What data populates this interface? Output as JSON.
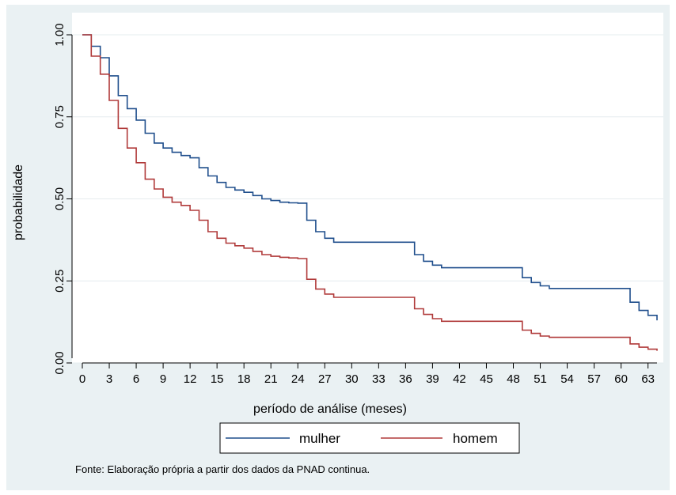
{
  "chart_data": {
    "type": "line",
    "step": true,
    "title": "",
    "xlabel": "período de análise (meses)",
    "ylabel": "probabilidade",
    "xlim": [
      0,
      64
    ],
    "ylim": [
      0,
      1
    ],
    "x_ticks": [
      "0",
      "3",
      "6",
      "9",
      "12",
      "15",
      "18",
      "21",
      "24",
      "27",
      "30",
      "33",
      "36",
      "39",
      "42",
      "45",
      "48",
      "51",
      "54",
      "57",
      "60",
      "63"
    ],
    "y_ticks": [
      "0.00",
      "0.25",
      "0.50",
      "0.75",
      "1.00"
    ],
    "grid": true,
    "legend_position": "bottom",
    "series": [
      {
        "name": "mulher",
        "color": "#1f4e8c",
        "points": [
          [
            0,
            1.0
          ],
          [
            1,
            0.965
          ],
          [
            2,
            0.93
          ],
          [
            3,
            0.875
          ],
          [
            4,
            0.815
          ],
          [
            5,
            0.775
          ],
          [
            6,
            0.74
          ],
          [
            7,
            0.7
          ],
          [
            8,
            0.67
          ],
          [
            9,
            0.655
          ],
          [
            10,
            0.642
          ],
          [
            11,
            0.632
          ],
          [
            12,
            0.625
          ],
          [
            13,
            0.595
          ],
          [
            14,
            0.57
          ],
          [
            15,
            0.55
          ],
          [
            16,
            0.535
          ],
          [
            17,
            0.527
          ],
          [
            18,
            0.52
          ],
          [
            19,
            0.51
          ],
          [
            20,
            0.5
          ],
          [
            21,
            0.495
          ],
          [
            22,
            0.49
          ],
          [
            23,
            0.488
          ],
          [
            24,
            0.487
          ],
          [
            25,
            0.435
          ],
          [
            26,
            0.4
          ],
          [
            27,
            0.38
          ],
          [
            28,
            0.368
          ],
          [
            37,
            0.33
          ],
          [
            38,
            0.31
          ],
          [
            39,
            0.298
          ],
          [
            40,
            0.29
          ],
          [
            49,
            0.26
          ],
          [
            50,
            0.245
          ],
          [
            51,
            0.235
          ],
          [
            52,
            0.227
          ],
          [
            61,
            0.185
          ],
          [
            62,
            0.16
          ],
          [
            63,
            0.145
          ],
          [
            64,
            0.13
          ]
        ]
      },
      {
        "name": "homem",
        "color": "#b03a3a",
        "points": [
          [
            0,
            1.0
          ],
          [
            1,
            0.935
          ],
          [
            2,
            0.88
          ],
          [
            3,
            0.8
          ],
          [
            4,
            0.715
          ],
          [
            5,
            0.655
          ],
          [
            6,
            0.61
          ],
          [
            7,
            0.56
          ],
          [
            8,
            0.53
          ],
          [
            9,
            0.505
          ],
          [
            10,
            0.49
          ],
          [
            11,
            0.48
          ],
          [
            12,
            0.465
          ],
          [
            13,
            0.435
          ],
          [
            14,
            0.4
          ],
          [
            15,
            0.38
          ],
          [
            16,
            0.365
          ],
          [
            17,
            0.357
          ],
          [
            18,
            0.35
          ],
          [
            19,
            0.34
          ],
          [
            20,
            0.33
          ],
          [
            21,
            0.325
          ],
          [
            22,
            0.322
          ],
          [
            23,
            0.32
          ],
          [
            24,
            0.318
          ],
          [
            25,
            0.255
          ],
          [
            26,
            0.225
          ],
          [
            27,
            0.21
          ],
          [
            28,
            0.2
          ],
          [
            37,
            0.165
          ],
          [
            38,
            0.148
          ],
          [
            39,
            0.135
          ],
          [
            40,
            0.127
          ],
          [
            49,
            0.1
          ],
          [
            50,
            0.09
          ],
          [
            51,
            0.082
          ],
          [
            52,
            0.078
          ],
          [
            61,
            0.058
          ],
          [
            62,
            0.048
          ],
          [
            63,
            0.042
          ],
          [
            64,
            0.037
          ]
        ]
      }
    ],
    "note": "Fonte: Elaboração própria a partir dos dados da PNAD continua."
  }
}
